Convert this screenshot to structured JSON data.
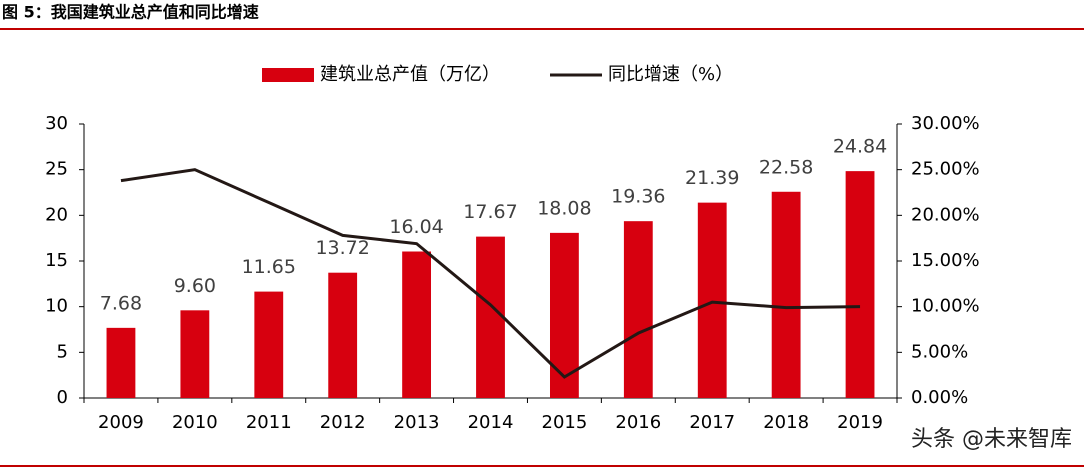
{
  "chart_data": {
    "type": "bar-line",
    "title": "图 5：我国建筑业总产值和同比增速",
    "categories": [
      "2009",
      "2010",
      "2011",
      "2012",
      "2013",
      "2014",
      "2015",
      "2016",
      "2017",
      "2018",
      "2019"
    ],
    "series": [
      {
        "name": "建筑业总产值（万亿）",
        "type": "bar",
        "color": "#d7000f",
        "values": [
          7.68,
          9.6,
          11.65,
          13.72,
          16.04,
          17.67,
          18.08,
          19.36,
          21.39,
          22.58,
          24.84
        ],
        "value_labels": [
          "7.68",
          "9.60",
          "11.65",
          "13.72",
          "16.04",
          "17.67",
          "18.08",
          "19.36",
          "21.39",
          "22.58",
          "24.84"
        ]
      },
      {
        "name": "同比增速（%）",
        "type": "line",
        "axis": "y2",
        "color": "#231815",
        "values": [
          23.8,
          25.0,
          21.4,
          17.8,
          16.9,
          10.2,
          2.3,
          7.1,
          10.5,
          9.9,
          10.0
        ]
      }
    ],
    "ylim": [
      0,
      30
    ],
    "yticks": [
      0,
      5,
      10,
      15,
      20,
      25,
      30
    ],
    "y2lim": [
      0,
      30
    ],
    "y2ticks": [
      {
        "value": 0,
        "label": "0.00%"
      },
      {
        "value": 5,
        "label": "5.00%"
      },
      {
        "value": 10,
        "label": "10.00%"
      },
      {
        "value": 15,
        "label": "15.00%"
      },
      {
        "value": 20,
        "label": "20.00%"
      },
      {
        "value": 25,
        "label": "25.00%"
      },
      {
        "value": 30,
        "label": "30.00%"
      }
    ],
    "legend": "top",
    "watermark": "头条 @未来智库"
  }
}
